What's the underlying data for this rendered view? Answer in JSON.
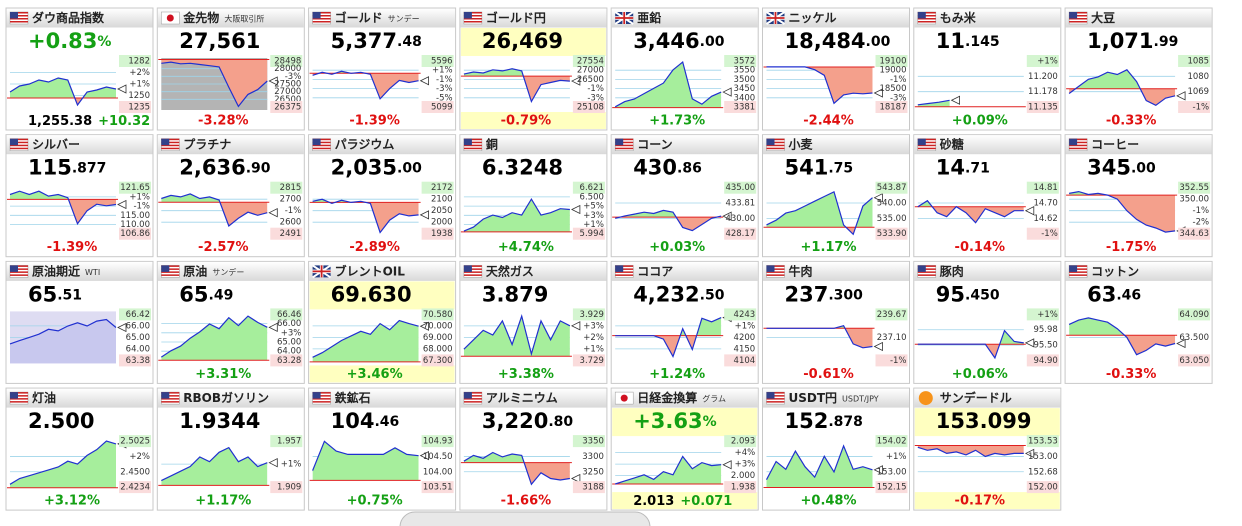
{
  "tiles": [
    {
      "name": "ダウ商品指数",
      "flag": "us",
      "price": "+0.83",
      "price_small": "%",
      "bottom": "1,255.38",
      "bottom2": "+10.32",
      "labels": [
        "1282",
        "+2%",
        "+1%",
        "1250",
        "1235"
      ],
      "ylim": [
        1232,
        1284
      ],
      "base": 1244,
      "line": [
        1250,
        1256,
        1258,
        1262,
        1260,
        1264,
        1262,
        1237,
        1250,
        1252,
        1255,
        1253
      ]
    },
    {
      "name": "金先物",
      "sub": "大阪取引所",
      "flag": "jp",
      "price": "27,561",
      "change": "-3.28%",
      "chart_bg": "#b4b4b4",
      "labels": [
        "28498",
        "28000",
        "-3%",
        "27500",
        "27000",
        "26500",
        "26375"
      ],
      "ylim": [
        26350,
        28520
      ],
      "base": 28460,
      "line": [
        28300,
        28350,
        28280,
        28300,
        28250,
        28200,
        28150,
        27300,
        26500,
        27000,
        27200,
        27561
      ]
    },
    {
      "name": "ゴールド",
      "sub": "サンデー",
      "flag": "us",
      "price": "5,377",
      "price_small": ".48",
      "change": "-1.39%",
      "labels": [
        "5596",
        "+1%",
        "-1%",
        "-3%",
        "-5%",
        "5099"
      ],
      "ylim": [
        5090,
        5600
      ],
      "base": 5450,
      "line": [
        5430,
        5460,
        5440,
        5470,
        5450,
        5460,
        5440,
        5200,
        5300,
        5380,
        5360,
        5377
      ]
    },
    {
      "name": "ゴールド円",
      "flag": "us",
      "highlight": true,
      "price": "26,469",
      "change": "-0.79%",
      "labels": [
        "27554",
        "27000",
        "26500",
        "-1%",
        "-3%",
        "25108"
      ],
      "ylim": [
        25100,
        27560
      ],
      "base": 26700,
      "line": [
        26800,
        26900,
        26850,
        27000,
        26950,
        27050,
        26950,
        25500,
        26300,
        26400,
        26500,
        26469
      ]
    },
    {
      "name": "亜鉛",
      "flag": "uk",
      "price": "3,446",
      "price_small": ".00",
      "change": "+1.73%",
      "labels": [
        "3572",
        "3550",
        "3500",
        "3450",
        "3400",
        "3381"
      ],
      "ylim": [
        3378,
        3575
      ],
      "base": 3387,
      "line": [
        3390,
        3410,
        3420,
        3440,
        3460,
        3480,
        3530,
        3560,
        3420,
        3400,
        3430,
        3446
      ]
    },
    {
      "name": "ニッケル",
      "flag": "uk",
      "price": "18,484",
      "price_small": ".00",
      "change": "-2.44%",
      "labels": [
        "19100",
        "19000",
        "-1%",
        "18500",
        "-3%",
        "18187"
      ],
      "ylim": [
        18180,
        19110
      ],
      "base": 18950,
      "line": [
        18950,
        18950,
        18950,
        18950,
        18950,
        18900,
        18800,
        18300,
        18450,
        18480,
        18470,
        18484
      ]
    },
    {
      "name": "もみ米",
      "flag": "us",
      "price": "11",
      "price_small": ".145",
      "change": "+0.09%",
      "labels": [
        "+1%",
        "11.200",
        "11.178",
        "11.135"
      ],
      "ylim": [
        11.13,
        11.21
      ],
      "base": 11.135,
      "line": [
        11.138,
        11.14,
        11.142,
        11.145
      ]
    },
    {
      "name": "大豆",
      "flag": "us",
      "price": "1,071",
      "price_small": ".99",
      "change": "-0.33%",
      "labels": [
        "1085",
        "1080",
        "1069",
        "-1%"
      ],
      "ylim": [
        1066,
        1088
      ],
      "base": 1075,
      "line": [
        1073,
        1076,
        1079,
        1080,
        1082,
        1081,
        1083,
        1078,
        1070,
        1068,
        1071,
        1072
      ]
    },
    {
      "name": "シルバー",
      "flag": "us",
      "price": "115",
      "price_small": ".877",
      "change": "-1.39%",
      "labels": [
        "121.65",
        "+1%",
        "-1%",
        "115.00",
        "110.00",
        "106.86"
      ],
      "ylim": [
        106,
        122
      ],
      "base": 117.5,
      "line": [
        119,
        120,
        119,
        120,
        118.5,
        119,
        118,
        110,
        114,
        116,
        115.5,
        115.9
      ]
    },
    {
      "name": "プラチナ",
      "flag": "us",
      "price": "2,636",
      "price_small": ".90",
      "change": "-2.57%",
      "labels": [
        "2815",
        "2700",
        "-1%",
        "2600",
        "2491"
      ],
      "ylim": [
        2480,
        2820
      ],
      "base": 2705,
      "line": [
        2730,
        2750,
        2740,
        2760,
        2730,
        2740,
        2720,
        2550,
        2600,
        2640,
        2620,
        2637
      ]
    },
    {
      "name": "パラジウム",
      "flag": "us",
      "price": "2,035",
      "price_small": ".00",
      "change": "-2.89%",
      "labels": [
        "2172",
        "2100",
        "2050",
        "2000",
        "1938"
      ],
      "ylim": [
        1930,
        2180
      ],
      "base": 2095,
      "line": [
        2100,
        2110,
        2090,
        2105,
        2095,
        2100,
        2090,
        1950,
        2010,
        2040,
        2030,
        2035
      ]
    },
    {
      "name": "銅",
      "flag": "us",
      "price": "6.3248",
      "change": "+4.74%",
      "labels": [
        "6.621",
        "6.500",
        "+5%",
        "+3%",
        "+1%",
        "5.994"
      ],
      "ylim": [
        5.98,
        6.63
      ],
      "base": 6.04,
      "line": [
        6.05,
        6.1,
        6.2,
        6.25,
        6.22,
        6.28,
        6.25,
        6.45,
        6.25,
        6.28,
        6.33,
        6.32
      ]
    },
    {
      "name": "コーン",
      "flag": "us",
      "price": "430",
      "price_small": ".86",
      "change": "+0.03%",
      "labels": [
        "435.00",
        "433.81",
        "430.00",
        "428.17"
      ],
      "ylim": [
        427.5,
        436
      ],
      "base": 430.7,
      "line": [
        430.5,
        430.9,
        431.2,
        431.5,
        431.3,
        431.8,
        431.5,
        429,
        428.5,
        429.5,
        430.5,
        430.86
      ]
    },
    {
      "name": "小麦",
      "flag": "us",
      "price": "541",
      "price_small": ".75",
      "change": "+1.17%",
      "labels": [
        "543.87",
        "540.00",
        "535.00",
        "533.90"
      ],
      "ylim": [
        533.5,
        544.5
      ],
      "base": 535.5,
      "line": [
        536,
        537,
        538.5,
        539,
        540,
        541,
        542,
        543,
        536,
        534,
        540,
        541.75
      ]
    },
    {
      "name": "砂糖",
      "flag": "us",
      "price": "14",
      "price_small": ".71",
      "change": "-0.14%",
      "labels": [
        "14.81",
        "14.70",
        "14.62",
        "-1%"
      ],
      "ylim": [
        14.58,
        14.84
      ],
      "base": 14.73,
      "line": [
        14.73,
        14.76,
        14.7,
        14.68,
        14.73,
        14.7,
        14.65,
        14.72,
        14.7,
        14.68,
        14.71,
        14.71
      ]
    },
    {
      "name": "コーヒー",
      "flag": "us",
      "price": "345",
      "price_small": ".00",
      "change": "-1.75%",
      "labels": [
        "352.55",
        "350.00",
        "-1%",
        "-2%",
        "344.63"
      ],
      "ylim": [
        344,
        353
      ],
      "base": 351.2,
      "line": [
        351.5,
        351.8,
        351.3,
        351.5,
        351.2,
        350.5,
        348.5,
        347,
        346,
        345.5,
        344.8,
        345
      ]
    },
    {
      "name": "原油期近",
      "sub": "WTI",
      "flag": "us",
      "price": "65",
      "price_small": ".51",
      "chart_bg": "#dedcf2",
      "labels": [
        "66.42",
        "66.00",
        "65.00",
        "64.00",
        "63.38"
      ],
      "ylim": [
        63.3,
        66.5
      ],
      "line": [
        64.5,
        64.7,
        64.9,
        65.1,
        65.4,
        65.3,
        65.6,
        65.8,
        65.6,
        65.9,
        66.0,
        65.51
      ]
    },
    {
      "name": "原油",
      "sub": "サンデー",
      "flag": "us",
      "price": "65",
      "price_small": ".49",
      "change": "+3.31%",
      "labels": [
        "66.46",
        "66.00",
        "+3%",
        "65.00",
        "64.00",
        "63.28"
      ],
      "ylim": [
        63.2,
        66.5
      ],
      "base": 63.4,
      "line": [
        63.6,
        64.0,
        64.3,
        64.8,
        65.2,
        65.7,
        65.4,
        66.1,
        65.6,
        66.2,
        65.8,
        65.49
      ]
    },
    {
      "name": "ブレントOIL",
      "flag": "uk",
      "highlight": true,
      "price": "69.630",
      "change": "+3.46%",
      "labels": [
        "70.580",
        "70.000",
        "69.000",
        "68.000",
        "67.300"
      ],
      "ylim": [
        67.2,
        70.6
      ],
      "base": 67.3,
      "line": [
        67.6,
        67.9,
        68.3,
        68.7,
        69.0,
        69.3,
        69.1,
        69.8,
        69.4,
        70.0,
        69.8,
        69.63
      ]
    },
    {
      "name": "天然ガス",
      "flag": "us",
      "price": "3.879",
      "change": "+3.38%",
      "labels": [
        "3.929",
        "+3%",
        "+2%",
        "+1%",
        "3.729"
      ],
      "ylim": [
        3.72,
        3.94
      ],
      "base": 3.75,
      "line": [
        3.78,
        3.82,
        3.86,
        3.84,
        3.9,
        3.8,
        3.92,
        3.76,
        3.9,
        3.82,
        3.9,
        3.879
      ]
    },
    {
      "name": "ココア",
      "flag": "us",
      "price": "4,232",
      "price_small": ".50",
      "change": "+1.24%",
      "labels": [
        "4243",
        "+1%",
        "4200",
        "4150",
        "4104"
      ],
      "ylim": [
        4100,
        4250
      ],
      "base": 4180,
      "line": [
        4180,
        4180,
        4180,
        4180,
        4180,
        4170,
        4120,
        4200,
        4140,
        4230,
        4220,
        4232
      ]
    },
    {
      "name": "牛肉",
      "flag": "us",
      "price": "237",
      "price_small": ".300",
      "change": "-0.61%",
      "labels": [
        "239.67",
        "237.10",
        "-1%"
      ],
      "ylim": [
        236,
        240
      ],
      "base": 238.7,
      "line": [
        238.7,
        238.7,
        238.7,
        238.7,
        238.7,
        238.7,
        238.7,
        238.7,
        238.9,
        237.5,
        237.2,
        237.3
      ]
    },
    {
      "name": "豚肉",
      "flag": "us",
      "price": "95",
      "price_small": ".450",
      "change": "+0.06%",
      "labels": [
        "+1%",
        "95.98",
        "95.50",
        "94.90"
      ],
      "ylim": [
        94.7,
        96.6
      ],
      "base": 95.4,
      "line": [
        95.4,
        95.4,
        95.4,
        95.4,
        95.4,
        95.4,
        95.4,
        95.4,
        94.9,
        95.9,
        95.5,
        95.45
      ]
    },
    {
      "name": "コットン",
      "flag": "us",
      "price": "63",
      "price_small": ".46",
      "change": "-0.33%",
      "labels": [
        "64.090",
        "63.500",
        "63.050"
      ],
      "ylim": [
        63,
        64.2
      ],
      "base": 63.65,
      "line": [
        63.9,
        64.0,
        64.05,
        64.0,
        63.95,
        63.8,
        63.6,
        63.2,
        63.3,
        63.45,
        63.4,
        63.46
      ]
    },
    {
      "name": "灯油",
      "flag": "us",
      "price": "2.500",
      "change": "+3.12%",
      "labels": [
        "2.5025",
        "+2%",
        "2.4500",
        "2.4234"
      ],
      "ylim": [
        2.42,
        2.51
      ],
      "base": 2.424,
      "line": [
        2.43,
        2.44,
        2.445,
        2.45,
        2.455,
        2.46,
        2.47,
        2.465,
        2.48,
        2.49,
        2.505,
        2.5
      ]
    },
    {
      "name": "RBOBガソリン",
      "flag": "us",
      "price": "1.9344",
      "change": "+1.17%",
      "labels": [
        "1.957",
        "+1%",
        "1.909"
      ],
      "ylim": [
        1.905,
        1.96
      ],
      "base": 1.91,
      "line": [
        1.915,
        1.92,
        1.925,
        1.93,
        1.94,
        1.935,
        1.945,
        1.95,
        1.935,
        1.94,
        1.93,
        1.934
      ]
    },
    {
      "name": "鉄鉱石",
      "flag": "us",
      "price": "104",
      "price_small": ".46",
      "change": "+0.75%",
      "labels": [
        "104.93",
        "104.50",
        "104.00",
        "103.51"
      ],
      "ylim": [
        103.4,
        105
      ],
      "base": 103.7,
      "line": [
        104.0,
        104.9,
        104.6,
        104.5,
        104.5,
        104.5,
        104.5,
        104.7,
        104.5,
        104.46
      ]
    },
    {
      "name": "アルミニウム",
      "flag": "us",
      "price": "3,220",
      "price_small": ".80",
      "change": "-1.66%",
      "labels": [
        "3350",
        "3300",
        "3250",
        "3188"
      ],
      "ylim": [
        3180,
        3360
      ],
      "base": 3275,
      "line": [
        3280,
        3300,
        3290,
        3310,
        3295,
        3305,
        3300,
        3200,
        3240,
        3220,
        3215,
        3220
      ]
    },
    {
      "name": "日経金換算",
      "sub": "グラム",
      "flag": "jp",
      "highlight": true,
      "price": "+3.63",
      "price_small": "%",
      "bottom": "2.013",
      "bottom2": "+0.071",
      "labels": [
        "2.093",
        "+4%",
        "+3%",
        "2.000",
        "1.938"
      ],
      "ylim": [
        1.93,
        2.1
      ],
      "base": 1.95,
      "line": [
        1.95,
        1.96,
        1.97,
        1.98,
        1.965,
        1.99,
        1.98,
        2.04,
        2.0,
        2.02,
        2.01,
        2.013
      ]
    },
    {
      "name": "USDT円",
      "sub": "USDT/JPY",
      "flag": "us",
      "price": "152",
      "price_small": ".878",
      "change": "+0.48%",
      "labels": [
        "154.02",
        "+1%",
        "153.00",
        "152.15"
      ],
      "ylim": [
        152.1,
        154.1
      ],
      "base": 152.2,
      "line": [
        152.5,
        153.2,
        152.9,
        153.6,
        153.0,
        152.6,
        153.4,
        152.8,
        153.8,
        152.9,
        153.0,
        152.88
      ]
    },
    {
      "name": "サンデードル",
      "flag": "btc",
      "highlight": true,
      "price": "153.099",
      "change": "-0.17%",
      "labels": [
        "153.53",
        "153.00",
        "152.68",
        "152.00"
      ],
      "ylim": [
        151.9,
        153.6
      ],
      "base": 153.36,
      "line": [
        153.3,
        153.2,
        153.25,
        153.1,
        153.15,
        153.05,
        153.2,
        153.0,
        153.1,
        153.05,
        153.1,
        153.099
      ]
    }
  ]
}
